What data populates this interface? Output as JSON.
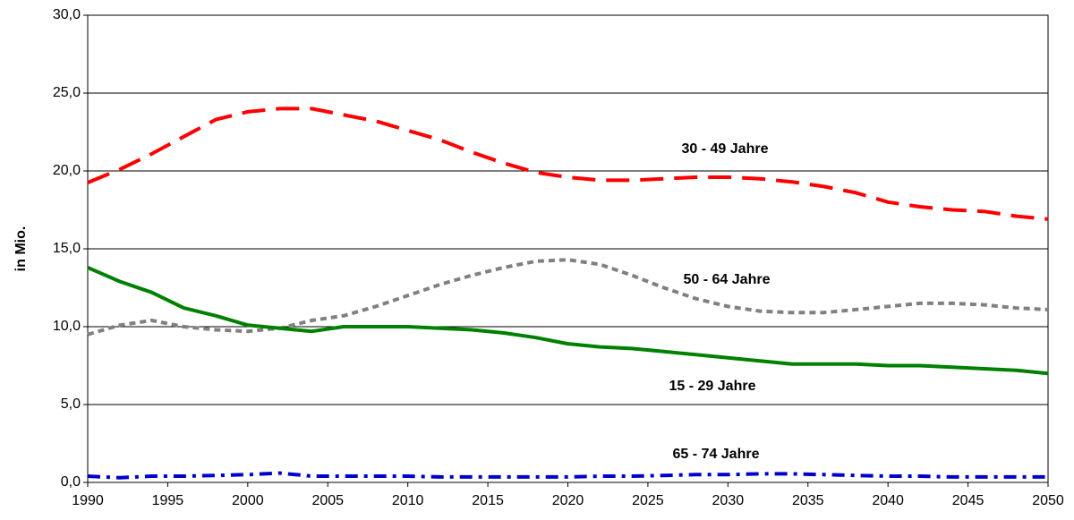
{
  "chart_data": {
    "type": "line",
    "y_label": "in Mio.",
    "x": [
      1990,
      1992,
      1994,
      1996,
      1998,
      2000,
      2002,
      2004,
      2006,
      2008,
      2010,
      2012,
      2014,
      2016,
      2018,
      2020,
      2022,
      2024,
      2026,
      2028,
      2030,
      2032,
      2034,
      2036,
      2038,
      2040,
      2042,
      2044,
      2046,
      2048,
      2050
    ],
    "xlim": [
      1990,
      2050
    ],
    "xticks": [
      1990,
      1995,
      2000,
      2005,
      2010,
      2015,
      2020,
      2025,
      2030,
      2035,
      2040,
      2045,
      2050
    ],
    "ylim": [
      0,
      30
    ],
    "yticks": [
      {
        "value": 0,
        "label": "0,0"
      },
      {
        "value": 5,
        "label": "5,0"
      },
      {
        "value": 10,
        "label": "10,0"
      },
      {
        "value": 15,
        "label": "15,0"
      },
      {
        "value": 20,
        "label": "20,0"
      },
      {
        "value": 25,
        "label": "25,0"
      },
      {
        "value": 30,
        "label": "30,0"
      }
    ],
    "grid": true,
    "series": [
      {
        "name": "30 - 49 Jahre",
        "color": "#ff0000",
        "style": "dashed",
        "values": [
          19.25,
          20.1,
          21.1,
          22.2,
          23.3,
          23.8,
          24.0,
          24.0,
          23.6,
          23.2,
          22.6,
          22.0,
          21.2,
          20.5,
          19.9,
          19.6,
          19.4,
          19.4,
          19.5,
          19.6,
          19.6,
          19.5,
          19.3,
          19.0,
          18.6,
          18.0,
          17.7,
          17.5,
          17.4,
          17.1,
          16.9
        ]
      },
      {
        "name": "50 - 64 Jahre",
        "color": "#808080",
        "style": "dotted",
        "values": [
          9.5,
          10.1,
          10.4,
          10.0,
          9.8,
          9.7,
          9.9,
          10.4,
          10.7,
          11.3,
          12.0,
          12.7,
          13.3,
          13.8,
          14.2,
          14.3,
          14.0,
          13.3,
          12.5,
          11.8,
          11.3,
          11.0,
          10.9,
          10.9,
          11.1,
          11.3,
          11.5,
          11.5,
          11.4,
          11.2,
          11.1
        ]
      },
      {
        "name": "15 - 29 Jahre",
        "color": "#008000",
        "style": "solid",
        "values": [
          13.8,
          12.9,
          12.2,
          11.2,
          10.7,
          10.1,
          9.9,
          9.7,
          10.0,
          10.0,
          10.0,
          9.9,
          9.8,
          9.6,
          9.3,
          8.9,
          8.7,
          8.6,
          8.4,
          8.2,
          8.0,
          7.8,
          7.6,
          7.6,
          7.6,
          7.5,
          7.5,
          7.4,
          7.3,
          7.2,
          7.0
        ]
      },
      {
        "name": "65 - 74 Jahre",
        "color": "#0000cc",
        "style": "dashdot",
        "values": [
          0.4,
          0.3,
          0.4,
          0.4,
          0.45,
          0.5,
          0.6,
          0.4,
          0.4,
          0.4,
          0.4,
          0.35,
          0.35,
          0.35,
          0.35,
          0.35,
          0.4,
          0.4,
          0.45,
          0.5,
          0.5,
          0.55,
          0.55,
          0.5,
          0.45,
          0.4,
          0.4,
          0.35,
          0.35,
          0.35,
          0.35
        ]
      }
    ]
  }
}
